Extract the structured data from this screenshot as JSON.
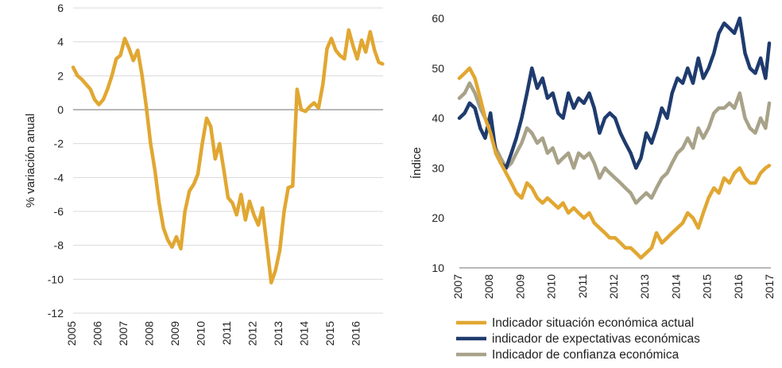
{
  "chart_data": [
    {
      "type": "line",
      "title": "",
      "xlabel": "",
      "ylabel": "% variación anual",
      "ylim": [
        -12,
        6
      ],
      "yticks": [
        "6",
        "4",
        "2",
        "0",
        "-2",
        "-4",
        "-6",
        "-8",
        "-10",
        "-12"
      ],
      "xticks": [
        "2005",
        "2006",
        "2007",
        "2008",
        "2009",
        "2010",
        "2011",
        "2012",
        "2013",
        "2014",
        "2015",
        "2016"
      ],
      "xlim": [
        2005.0,
        2017.0
      ],
      "grid": true,
      "zero_line": true,
      "series": [
        {
          "color": "#E1A731",
          "x": [
            2005.0,
            2005.17,
            2005.33,
            2005.5,
            2005.67,
            2005.83,
            2006.0,
            2006.17,
            2006.33,
            2006.5,
            2006.67,
            2006.83,
            2007.0,
            2007.17,
            2007.33,
            2007.5,
            2007.67,
            2007.83,
            2008.0,
            2008.17,
            2008.33,
            2008.5,
            2008.67,
            2008.83,
            2009.0,
            2009.17,
            2009.33,
            2009.5,
            2009.67,
            2009.83,
            2010.0,
            2010.17,
            2010.33,
            2010.5,
            2010.67,
            2010.83,
            2011.0,
            2011.17,
            2011.33,
            2011.5,
            2011.67,
            2011.83,
            2012.0,
            2012.17,
            2012.33,
            2012.5,
            2012.67,
            2012.83,
            2013.0,
            2013.17,
            2013.33,
            2013.5,
            2013.67,
            2013.83,
            2014.0,
            2014.17,
            2014.33,
            2014.5,
            2014.67,
            2014.83,
            2015.0,
            2015.17,
            2015.33,
            2015.5,
            2015.67,
            2015.83,
            2016.0,
            2016.17,
            2016.33,
            2016.5,
            2016.67,
            2016.83,
            2016.98
          ],
          "values": [
            2.5,
            2.0,
            1.8,
            1.5,
            1.2,
            0.6,
            0.3,
            0.6,
            1.2,
            2.0,
            3.0,
            3.2,
            4.2,
            3.6,
            2.9,
            3.5,
            2.0,
            0.2,
            -2.0,
            -3.6,
            -5.5,
            -7.0,
            -7.7,
            -8.1,
            -7.5,
            -8.2,
            -6.0,
            -4.8,
            -4.4,
            -3.8,
            -2.0,
            -0.5,
            -1.0,
            -2.9,
            -2.0,
            -3.5,
            -5.2,
            -5.5,
            -6.2,
            -5.0,
            -6.5,
            -5.4,
            -6.2,
            -6.8,
            -5.8,
            -8.0,
            -10.2,
            -9.5,
            -8.3,
            -6.0,
            -4.6,
            -4.5,
            1.2,
            0.0,
            -0.1,
            0.2,
            0.4,
            0.1,
            1.5,
            3.6,
            4.2,
            3.5,
            3.2,
            3.0,
            4.7,
            3.8,
            3.0,
            4.1,
            3.4,
            4.6,
            3.5,
            2.8,
            2.7
          ]
        }
      ]
    },
    {
      "type": "line",
      "title": "",
      "xlabel": "",
      "ylabel": "Índice",
      "ylim": [
        10,
        60
      ],
      "yticks": [
        "60",
        "50",
        "40",
        "30",
        "20",
        "10"
      ],
      "xticks": [
        "2007",
        "2008",
        "2009",
        "2010",
        "2011",
        "2012",
        "2013",
        "2014",
        "2015",
        "2016",
        "2017"
      ],
      "xlim": [
        2007.0,
        2017.0
      ],
      "grid": false,
      "legend": "bottom",
      "series": [
        {
          "name": "Indicador situación económica actual",
          "color": "#E1A731",
          "x": [
            2007.0,
            2007.17,
            2007.33,
            2007.5,
            2007.67,
            2007.83,
            2008.0,
            2008.17,
            2008.33,
            2008.5,
            2008.67,
            2008.83,
            2009.0,
            2009.17,
            2009.33,
            2009.5,
            2009.67,
            2009.83,
            2010.0,
            2010.17,
            2010.33,
            2010.5,
            2010.67,
            2010.83,
            2011.0,
            2011.17,
            2011.33,
            2011.5,
            2011.67,
            2011.83,
            2012.0,
            2012.17,
            2012.33,
            2012.5,
            2012.67,
            2012.83,
            2013.0,
            2013.17,
            2013.33,
            2013.5,
            2013.67,
            2013.83,
            2014.0,
            2014.17,
            2014.33,
            2014.5,
            2014.67,
            2014.83,
            2015.0,
            2015.17,
            2015.33,
            2015.5,
            2015.67,
            2015.83,
            2016.0,
            2016.17,
            2016.33,
            2016.5,
            2016.67,
            2016.83,
            2016.95
          ],
          "values": [
            48,
            49,
            50,
            48,
            44,
            40,
            37,
            33,
            31,
            29,
            27,
            25,
            24,
            27,
            26,
            24,
            23,
            24,
            23,
            22,
            23,
            21,
            22,
            21,
            20,
            21,
            19,
            18,
            17,
            16,
            16,
            15,
            14,
            14,
            13,
            12,
            13,
            14,
            17,
            15,
            16,
            17,
            18,
            19,
            21,
            20,
            18,
            21,
            24,
            26,
            25,
            28,
            27,
            29,
            30,
            28,
            27,
            27,
            29,
            30,
            30.5
          ]
        },
        {
          "name": "indicador de expectativas económicas",
          "color": "#1F3B6E",
          "x": [
            2007.0,
            2007.17,
            2007.33,
            2007.5,
            2007.67,
            2007.83,
            2008.0,
            2008.17,
            2008.33,
            2008.5,
            2008.67,
            2008.83,
            2009.0,
            2009.17,
            2009.33,
            2009.5,
            2009.67,
            2009.83,
            2010.0,
            2010.17,
            2010.33,
            2010.5,
            2010.67,
            2010.83,
            2011.0,
            2011.17,
            2011.33,
            2011.5,
            2011.67,
            2011.83,
            2012.0,
            2012.17,
            2012.33,
            2012.5,
            2012.67,
            2012.83,
            2013.0,
            2013.17,
            2013.33,
            2013.5,
            2013.67,
            2013.83,
            2014.0,
            2014.17,
            2014.33,
            2014.5,
            2014.67,
            2014.83,
            2015.0,
            2015.17,
            2015.33,
            2015.5,
            2015.67,
            2015.83,
            2016.0,
            2016.17,
            2016.33,
            2016.5,
            2016.67,
            2016.83,
            2016.95
          ],
          "values": [
            40,
            41,
            43,
            42,
            38,
            36,
            41,
            33,
            31,
            30,
            33,
            36,
            40,
            45,
            50,
            46,
            48,
            44,
            45,
            41,
            40,
            45,
            42,
            44,
            43,
            45,
            42,
            37,
            40,
            41,
            40,
            37,
            35,
            33,
            30,
            32,
            37,
            35,
            38,
            42,
            40,
            45,
            48,
            47,
            50,
            47,
            52,
            48,
            50,
            53,
            57,
            59,
            58,
            57,
            60,
            53,
            50,
            49,
            52,
            48,
            55
          ]
        },
        {
          "name": "Indicador de confianza económica",
          "color": "#A8A289",
          "x": [
            2007.0,
            2007.17,
            2007.33,
            2007.5,
            2007.67,
            2007.83,
            2008.0,
            2008.17,
            2008.33,
            2008.5,
            2008.67,
            2008.83,
            2009.0,
            2009.17,
            2009.33,
            2009.5,
            2009.67,
            2009.83,
            2010.0,
            2010.17,
            2010.33,
            2010.5,
            2010.67,
            2010.83,
            2011.0,
            2011.17,
            2011.33,
            2011.5,
            2011.67,
            2011.83,
            2012.0,
            2012.17,
            2012.33,
            2012.5,
            2012.67,
            2012.83,
            2013.0,
            2013.17,
            2013.33,
            2013.5,
            2013.67,
            2013.83,
            2014.0,
            2014.17,
            2014.33,
            2014.5,
            2014.67,
            2014.83,
            2015.0,
            2015.17,
            2015.33,
            2015.5,
            2015.67,
            2015.83,
            2016.0,
            2016.17,
            2016.33,
            2016.5,
            2016.67,
            2016.83,
            2016.95
          ],
          "values": [
            44,
            45,
            47,
            45,
            42,
            40,
            38,
            34,
            32,
            30,
            31,
            33,
            35,
            38,
            37,
            35,
            36,
            33,
            34,
            31,
            32,
            33,
            30,
            33,
            32,
            33,
            31,
            28,
            30,
            29,
            28,
            27,
            26,
            25,
            23,
            24,
            25,
            24,
            26,
            28,
            29,
            31,
            33,
            34,
            36,
            34,
            38,
            36,
            38,
            41,
            42,
            42,
            43,
            42,
            45,
            40,
            38,
            37,
            40,
            38,
            43
          ]
        }
      ]
    }
  ]
}
